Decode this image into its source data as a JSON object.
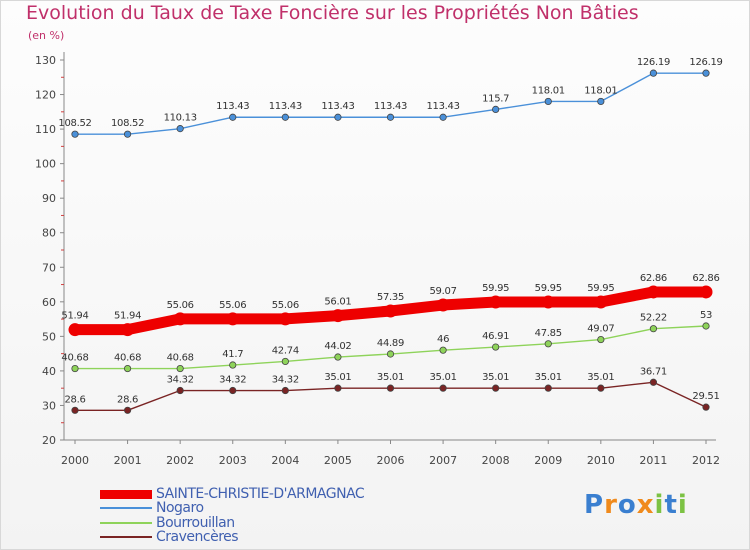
{
  "chart_data": {
    "type": "line",
    "title": "Evolution du Taux de Taxe Foncière sur les Propriétés Non Bâties",
    "ylabel": "(en %)",
    "xlabel": "",
    "x": [
      "2000",
      "2001",
      "2002",
      "2003",
      "2004",
      "2005",
      "2006",
      "2007",
      "2008",
      "2009",
      "2010",
      "2011",
      "2012"
    ],
    "ylim": [
      20,
      130
    ],
    "yticks": [
      20,
      30,
      40,
      50,
      60,
      70,
      80,
      90,
      100,
      110,
      120,
      130
    ],
    "grid": false,
    "legend_position": "bottom-left",
    "series": [
      {
        "name": "SAINTE-CHRISTIE-D'ARMAGNAC",
        "color": "#ee0000",
        "values": [
          51.94,
          51.94,
          55.06,
          55.06,
          55.06,
          56.01,
          57.35,
          59.07,
          59.95,
          59.95,
          59.95,
          62.86,
          62.86
        ],
        "labels": [
          "51.94",
          "51.94",
          "55.06",
          "55.06",
          "55.06",
          "56.01",
          "57.35",
          "59.07",
          "59.95",
          "59.95",
          "59.95",
          "62.86",
          "62.86"
        ]
      },
      {
        "name": "Nogaro",
        "color": "#4a90d9",
        "values": [
          108.52,
          108.52,
          110.13,
          113.43,
          113.43,
          113.43,
          113.43,
          113.43,
          115.7,
          118.01,
          118.01,
          126.19,
          126.19
        ],
        "labels": [
          "108.52",
          "108.52",
          "110.13",
          "113.43",
          "113.43",
          "113.43",
          "113.43",
          "113.43",
          "115.7",
          "118.01",
          "118.01",
          "126.19",
          "126.19"
        ]
      },
      {
        "name": "Bourrouillan",
        "color": "#8ed35a",
        "values": [
          40.68,
          40.68,
          40.68,
          41.7,
          42.74,
          44.02,
          44.89,
          46,
          46.91,
          47.85,
          49.07,
          52.22,
          53
        ],
        "labels": [
          "40.68",
          "40.68",
          "40.68",
          "41.7",
          "42.74",
          "44.02",
          "44.89",
          "46",
          "46.91",
          "47.85",
          "49.07",
          "52.22",
          "53"
        ]
      },
      {
        "name": "Cravencères",
        "color": "#7a2424",
        "values": [
          28.6,
          28.6,
          34.32,
          34.32,
          34.32,
          35.01,
          35.01,
          35.01,
          35.01,
          35.01,
          35.01,
          36.71,
          29.51
        ],
        "labels": [
          "28.6",
          "28.6",
          "34.32",
          "34.32",
          "34.32",
          "35.01",
          "35.01",
          "35.01",
          "35.01",
          "35.01",
          "35.01",
          "36.71",
          "29.51"
        ]
      }
    ]
  },
  "legend": {
    "items": [
      {
        "label": "SAINTE-CHRISTIE-D'ARMAGNAC",
        "color": "#ee0000"
      },
      {
        "label": "Nogaro",
        "color": "#4a90d9"
      },
      {
        "label": "Bourrouillan",
        "color": "#8ed35a"
      },
      {
        "label": "Cravencères",
        "color": "#7a2424"
      }
    ]
  },
  "logo": {
    "letters": [
      "P",
      "r",
      "o",
      "x",
      "i",
      "t",
      "i"
    ],
    "colors": [
      "#3a7fd0",
      "#f08a1c",
      "#3a7fd0",
      "#f08a1c",
      "#7cc243",
      "#3a7fd0",
      "#7cc243"
    ]
  }
}
